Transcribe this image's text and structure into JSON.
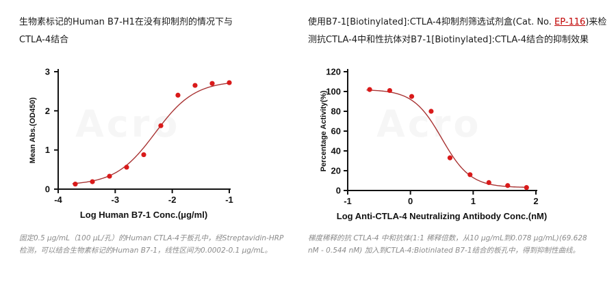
{
  "colors": {
    "curve": "#a83232",
    "points": "#d91a1a",
    "axis": "#111111",
    "link": "#c00000"
  },
  "left": {
    "heading_lines": [
      "生物素标记的Human  B7-H1在没有抑制剂的情况下与",
      "CTLA-4结合"
    ],
    "caption_lines": [
      "固定0.5 μg/mL（100 μL/孔）的Human CTLA-4于板孔中，经Streptavidin-HRP",
      "检测，可以结合生物素标记的Human B7-1，线性区间为0.0002-0.1 μg/mL。"
    ],
    "watermark": "Acro"
  },
  "right": {
    "heading_prefix": "使用B7-1[Biotinylated]:CTLA-4抑制剂筛选试剂盒(Cat.  No.  ",
    "heading_link": "EP-116",
    "heading_suffix": ")来检",
    "heading_line2": "测抗CTLA-4中和性抗体对B7-1[Biotinylated]:CTLA-4结合的抑制效果",
    "caption_lines": [
      "梯度稀释的抗 CTLA-4 中和抗体(1:1 稀释倍数，从10 μg/mL到0.078 μg/mL)(69.628",
      "nM - 0.544 nM) 加入到CTLA-4:Biotinlated  B7-1结合的板孔中，得到抑制性曲线。"
    ],
    "watermark": "Acro"
  },
  "chart_data": [
    {
      "type": "scatter",
      "title": "",
      "xlabel": "Log Human B7-1 Conc.(μg/ml)",
      "ylabel": "Mean Abs.(OD450)",
      "xlim": [
        -4,
        -1
      ],
      "ylim": [
        0,
        3
      ],
      "xticks": [
        -4,
        -3,
        -2,
        -1
      ],
      "yticks": [
        0,
        1,
        2,
        3
      ],
      "grid": false,
      "series": [
        {
          "x": [
            -3.7,
            -3.4,
            -3.1,
            -2.8,
            -2.5,
            -2.2,
            -1.9,
            -1.6,
            -1.3,
            -1.0
          ],
          "y": [
            0.13,
            0.19,
            0.33,
            0.56,
            0.88,
            1.62,
            2.4,
            2.65,
            2.7,
            2.72
          ]
        }
      ],
      "fit": {
        "bottom": 0.1,
        "top": 2.77,
        "logEC50": -2.3,
        "hill": 1.25
      }
    },
    {
      "type": "scatter",
      "title": "",
      "xlabel": "Log Anti-CTLA-4 Neutralizing Antibody Conc.(nM)",
      "ylabel": "Percentage Activity(%)",
      "xlim": [
        -1,
        2
      ],
      "ylim": [
        0,
        120
      ],
      "xticks": [
        -1,
        0,
        1,
        2
      ],
      "yticks": [
        0,
        20,
        40,
        60,
        80,
        100,
        120
      ],
      "grid": false,
      "series": [
        {
          "x": [
            -0.65,
            -0.33,
            0.02,
            0.33,
            0.63,
            0.95,
            1.25,
            1.55,
            1.85
          ],
          "y": [
            102,
            101,
            95,
            80,
            33,
            16,
            8,
            5,
            3
          ]
        }
      ],
      "fit": {
        "bottom": 3,
        "top": 102,
        "logEC50": 0.5,
        "hill": -1.9
      }
    }
  ]
}
